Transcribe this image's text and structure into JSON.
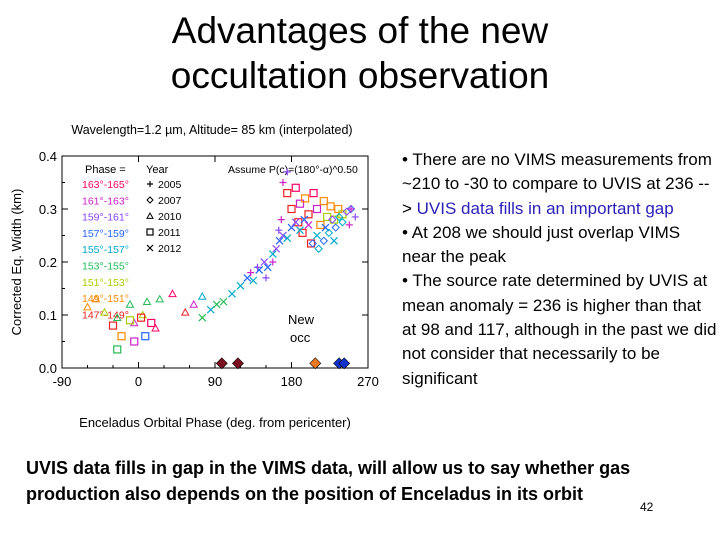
{
  "slide": {
    "title_line1": "Advantages of the new",
    "title_line2": "occultation observation",
    "bullets": [
      {
        "text": "There are no VIMS measurements from ~210 to -30 to compare to UVIS at 236 --> ",
        "highlight": "UVIS data fills in an important gap"
      },
      {
        "text": "At 208 we should just overlap VIMS near the peak",
        "highlight": ""
      },
      {
        "text": "The source rate determined by UVIS at mean anomaly = 236 is higher than that at 98 and 117, although in the past we did not consider that necessarily to be significant",
        "highlight": ""
      }
    ],
    "bullet_marker": "•",
    "footer_text": "UVIS data fills in gap in the VIMS data, will allow us to say whether gas production also depends on the position of Enceladus in its orbit",
    "page_number": "42"
  },
  "chart_data": {
    "type": "scatter",
    "title": "Wavelength=1.2 µm, Altitude= 85 km (interpolated)",
    "xlabel": "Enceladus Orbital Phase (deg. from pericenter)",
    "ylabel": "Corrected Eq. Width (km)",
    "xlim": [
      -90,
      270
    ],
    "ylim": [
      0.0,
      0.4
    ],
    "xticks": [
      "-90",
      "0",
      "90",
      "180",
      "270"
    ],
    "yticks": [
      "0.0",
      "0.1",
      "0.2",
      "0.3",
      "0.4"
    ],
    "legend_phase_header": "Phase =",
    "legend_year_header": "Year",
    "assume_text": "Assume P(c)=(180°-α)^0.50",
    "phase_legend": [
      {
        "label": "163°-165°",
        "color": "#ff0066"
      },
      {
        "label": "161°-163°",
        "color": "#cc22cc"
      },
      {
        "label": "159°-161°",
        "color": "#8844ff"
      },
      {
        "label": "157°-159°",
        "color": "#2266ff"
      },
      {
        "label": "155°-157°",
        "color": "#00aacc"
      },
      {
        "label": "153°-155°",
        "color": "#22bb55"
      },
      {
        "label": "151°-153°",
        "color": "#aacc00"
      },
      {
        "label": "149°-151°",
        "color": "#ff8800"
      },
      {
        "label": "147°-149°",
        "color": "#ee2222"
      }
    ],
    "year_legend": [
      {
        "label": "2005",
        "marker": "+"
      },
      {
        "label": "2007",
        "marker": "diamond"
      },
      {
        "label": "2010",
        "marker": "triangle"
      },
      {
        "label": "2011",
        "marker": "square"
      },
      {
        "label": "2012",
        "marker": "x"
      }
    ],
    "annotation": "New occ",
    "new_occ_points": [
      {
        "x": 98,
        "y": 0.005,
        "color": "#7a1020"
      },
      {
        "x": 117,
        "y": 0.005,
        "color": "#7a1020"
      },
      {
        "x": 208,
        "y": 0.005,
        "color": "#ee7722"
      },
      {
        "x": 236,
        "y": 0.005,
        "color": "#1133cc"
      },
      {
        "x": 242,
        "y": 0.005,
        "color": "#1133cc"
      }
    ],
    "series": [
      {
        "marker": "triangle",
        "points": [
          {
            "x": -60,
            "y": 0.115,
            "color": "#ff8800"
          },
          {
            "x": -50,
            "y": 0.13,
            "color": "#ff8800"
          },
          {
            "x": -40,
            "y": 0.105,
            "color": "#aacc00"
          },
          {
            "x": -25,
            "y": 0.095,
            "color": "#22bb55"
          },
          {
            "x": -10,
            "y": 0.12,
            "color": "#22bb55"
          },
          {
            "x": 10,
            "y": 0.125,
            "color": "#22bb55"
          },
          {
            "x": 25,
            "y": 0.13,
            "color": "#22bb55"
          },
          {
            "x": 40,
            "y": 0.14,
            "color": "#ff0066"
          },
          {
            "x": 55,
            "y": 0.105,
            "color": "#ee2222"
          },
          {
            "x": 65,
            "y": 0.12,
            "color": "#cc22cc"
          },
          {
            "x": 75,
            "y": 0.135,
            "color": "#00aacc"
          },
          {
            "x": 20,
            "y": 0.075,
            "color": "#ff0066"
          },
          {
            "x": -5,
            "y": 0.085,
            "color": "#cc22cc"
          },
          {
            "x": 5,
            "y": 0.1,
            "color": "#aacc00"
          }
        ]
      },
      {
        "marker": "square",
        "points": [
          {
            "x": -30,
            "y": 0.08,
            "color": "#ee2222"
          },
          {
            "x": -20,
            "y": 0.06,
            "color": "#ff8800"
          },
          {
            "x": -10,
            "y": 0.09,
            "color": "#aacc00"
          },
          {
            "x": -5,
            "y": 0.05,
            "color": "#cc22cc"
          },
          {
            "x": 3,
            "y": 0.095,
            "color": "#ee2222"
          },
          {
            "x": 8,
            "y": 0.06,
            "color": "#2266ff"
          },
          {
            "x": 15,
            "y": 0.085,
            "color": "#ff0066"
          },
          {
            "x": -25,
            "y": 0.035,
            "color": "#22bb55"
          },
          {
            "x": 175,
            "y": 0.33,
            "color": "#ee2222"
          },
          {
            "x": 180,
            "y": 0.3,
            "color": "#ee2222"
          },
          {
            "x": 185,
            "y": 0.34,
            "color": "#ff0066"
          },
          {
            "x": 188,
            "y": 0.275,
            "color": "#ee2222"
          },
          {
            "x": 190,
            "y": 0.31,
            "color": "#cc22cc"
          },
          {
            "x": 193,
            "y": 0.255,
            "color": "#ee2222"
          },
          {
            "x": 196,
            "y": 0.32,
            "color": "#ff8800"
          },
          {
            "x": 200,
            "y": 0.29,
            "color": "#ee2222"
          },
          {
            "x": 203,
            "y": 0.235,
            "color": "#ee2222"
          },
          {
            "x": 206,
            "y": 0.33,
            "color": "#ff0066"
          },
          {
            "x": 210,
            "y": 0.3,
            "color": "#cc22cc"
          },
          {
            "x": 214,
            "y": 0.27,
            "color": "#ff8800"
          },
          {
            "x": 218,
            "y": 0.315,
            "color": "#ff8800"
          },
          {
            "x": 222,
            "y": 0.285,
            "color": "#aacc00"
          },
          {
            "x": 226,
            "y": 0.305,
            "color": "#ff8800"
          },
          {
            "x": 230,
            "y": 0.28,
            "color": "#aacc00"
          },
          {
            "x": 235,
            "y": 0.3,
            "color": "#ff8800"
          },
          {
            "x": 240,
            "y": 0.29,
            "color": "#aacc00"
          }
        ]
      },
      {
        "marker": "x",
        "points": [
          {
            "x": 100,
            "y": 0.125,
            "color": "#22bb55"
          },
          {
            "x": 110,
            "y": 0.14,
            "color": "#00aacc"
          },
          {
            "x": 120,
            "y": 0.155,
            "color": "#00aacc"
          },
          {
            "x": 128,
            "y": 0.17,
            "color": "#2266ff"
          },
          {
            "x": 135,
            "y": 0.165,
            "color": "#00aacc"
          },
          {
            "x": 142,
            "y": 0.185,
            "color": "#2266ff"
          },
          {
            "x": 148,
            "y": 0.2,
            "color": "#8844ff"
          },
          {
            "x": 152,
            "y": 0.19,
            "color": "#2266ff"
          },
          {
            "x": 158,
            "y": 0.215,
            "color": "#00aacc"
          },
          {
            "x": 162,
            "y": 0.225,
            "color": "#8844ff"
          },
          {
            "x": 166,
            "y": 0.24,
            "color": "#2266ff"
          },
          {
            "x": 170,
            "y": 0.25,
            "color": "#8844ff"
          },
          {
            "x": 175,
            "y": 0.245,
            "color": "#00aacc"
          },
          {
            "x": 180,
            "y": 0.265,
            "color": "#2266ff"
          },
          {
            "x": 185,
            "y": 0.275,
            "color": "#8844ff"
          },
          {
            "x": 190,
            "y": 0.26,
            "color": "#00aacc"
          },
          {
            "x": 195,
            "y": 0.28,
            "color": "#2266ff"
          },
          {
            "x": 200,
            "y": 0.27,
            "color": "#cc22cc"
          },
          {
            "x": 210,
            "y": 0.25,
            "color": "#00aacc"
          },
          {
            "x": 220,
            "y": 0.265,
            "color": "#2266ff"
          },
          {
            "x": 230,
            "y": 0.24,
            "color": "#00aacc"
          },
          {
            "x": 75,
            "y": 0.095,
            "color": "#22bb55"
          },
          {
            "x": 85,
            "y": 0.11,
            "color": "#00aacc"
          },
          {
            "x": 92,
            "y": 0.12,
            "color": "#22bb55"
          }
        ]
      },
      {
        "marker": "diamond",
        "points": [
          {
            "x": 205,
            "y": 0.235,
            "color": "#2266ff"
          },
          {
            "x": 212,
            "y": 0.225,
            "color": "#00aacc"
          },
          {
            "x": 218,
            "y": 0.24,
            "color": "#2266ff"
          },
          {
            "x": 224,
            "y": 0.255,
            "color": "#00aacc"
          },
          {
            "x": 232,
            "y": 0.265,
            "color": "#2266ff"
          },
          {
            "x": 240,
            "y": 0.275,
            "color": "#00aacc"
          },
          {
            "x": 245,
            "y": 0.295,
            "color": "#8844ff"
          },
          {
            "x": 250,
            "y": 0.3,
            "color": "#2266ff"
          },
          {
            "x": 236,
            "y": 0.285,
            "color": "#00aacc"
          },
          {
            "x": 228,
            "y": 0.28,
            "color": "#8844ff"
          }
        ]
      },
      {
        "marker": "+",
        "points": [
          {
            "x": 150,
            "y": 0.17,
            "color": "#8844ff"
          },
          {
            "x": 158,
            "y": 0.2,
            "color": "#cc22cc"
          },
          {
            "x": 165,
            "y": 0.26,
            "color": "#8844ff"
          },
          {
            "x": 170,
            "y": 0.35,
            "color": "#cc22cc"
          },
          {
            "x": 175,
            "y": 0.37,
            "color": "#8844ff"
          },
          {
            "x": 168,
            "y": 0.28,
            "color": "#cc22cc"
          },
          {
            "x": 140,
            "y": 0.19,
            "color": "#8844ff"
          },
          {
            "x": 132,
            "y": 0.18,
            "color": "#cc22cc"
          },
          {
            "x": 250,
            "y": 0.3,
            "color": "#cc22cc"
          },
          {
            "x": 255,
            "y": 0.285,
            "color": "#8844ff"
          },
          {
            "x": 248,
            "y": 0.27,
            "color": "#cc22cc"
          }
        ]
      }
    ]
  }
}
